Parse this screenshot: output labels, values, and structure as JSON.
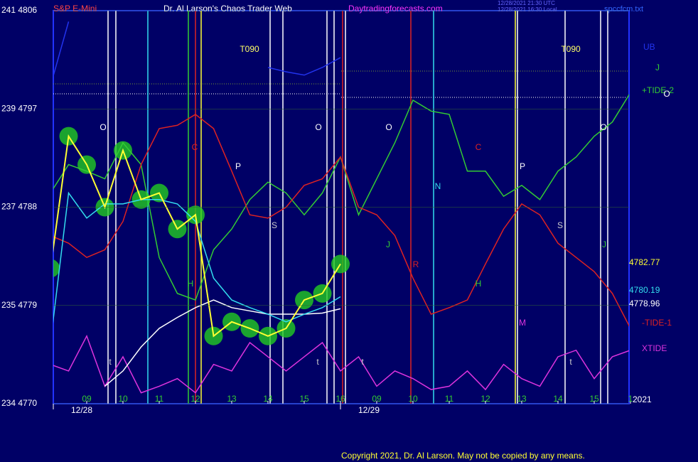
{
  "header": {
    "symbol": "S&P E-Mini",
    "site_title": "Dr. Al Larson's Chaos Trader Web",
    "site_url": "Daytradingforecasts.com",
    "utc_time": "12/28/2021 21:30 UTC",
    "local_time": "12/28/2021 16:30 Local",
    "file": "spccfcm.txt"
  },
  "footer": {
    "copyright": "Copyright 2021, Dr. Al Larson. May not be copied by any means."
  },
  "chart_data": {
    "type": "line",
    "categories": [
      null,
      null,
      "09",
      null,
      "10",
      null,
      "11",
      null,
      "12",
      null,
      "13",
      null,
      "14",
      null,
      "15",
      null,
      "16",
      null,
      "09",
      null,
      "10",
      null,
      "11",
      null,
      "12",
      null,
      "13",
      null,
      "14",
      null,
      "15",
      null,
      "1"
    ],
    "dates": [
      "12/28",
      "12/29"
    ],
    "ylim": [
      4770,
      4806
    ],
    "yticks": [
      {
        "value": 4770,
        "label": "234 4770"
      },
      {
        "value": 4779,
        "label": "235 4779"
      },
      {
        "value": 4788,
        "label": "237 4788"
      },
      {
        "value": 4797,
        "label": "239 4797"
      },
      {
        "value": 4806,
        "label": "241 4806"
      }
    ],
    "year": "2021",
    "series": [
      {
        "name": "UB",
        "color": "#2233ee",
        "values": [
          4799.1,
          4805.0,
          null,
          null,
          null,
          null,
          null,
          null,
          null,
          null,
          null,
          null,
          4800.8,
          4800.4,
          4800.1,
          4800.8,
          4801.7,
          null,
          null,
          null,
          null,
          null,
          null,
          null,
          null,
          null,
          null,
          null,
          null,
          null,
          null,
          null,
          null
        ]
      },
      {
        "name": "+TIDE-2",
        "color": "#33cc33",
        "values": [
          4789.3,
          4791.9,
          4791.3,
          4790.6,
          4793.9,
          4791.9,
          4783.4,
          4780.1,
          4779.5,
          4784.1,
          4786.0,
          4788.7,
          4790.3,
          4789.3,
          4787.3,
          4789.3,
          4792.6,
          4787.3,
          4790.6,
          4793.9,
          4797.8,
          4796.8,
          4796.5,
          4791.3,
          4791.3,
          4789.0,
          4790.0,
          4788.7,
          4791.3,
          4792.6,
          4794.5,
          4795.8,
          4798.5
        ]
      },
      {
        "name": "-TIDE-1",
        "color": "#dd2222",
        "values": [
          4785.4,
          4784.7,
          4783.4,
          4784.1,
          4786.7,
          4791.9,
          4795.2,
          4795.5,
          4796.5,
          4795.2,
          4791.3,
          4787.3,
          4787.0,
          4788.0,
          4790.0,
          4790.6,
          4792.6,
          4788.0,
          4787.3,
          4785.4,
          4781.5,
          4778.2,
          4778.8,
          4779.5,
          4782.8,
          4786.0,
          4788.3,
          4787.3,
          4784.7,
          4783.4,
          4782.1,
          4780.1,
          4776.9
        ]
      },
      {
        "name": "XTIDE",
        "color": "#dd33dd",
        "values": [
          4773.6,
          4773.0,
          4776.2,
          4771.6,
          4774.3,
          4771.0,
          4771.6,
          4772.3,
          4771.0,
          4773.6,
          4773.0,
          4775.6,
          4774.3,
          4773.0,
          4774.3,
          4775.6,
          4773.0,
          4774.3,
          4771.6,
          4773.0,
          4772.3,
          4771.3,
          4771.6,
          4773.0,
          4771.3,
          4773.6,
          4772.3,
          4771.6,
          4774.3,
          4774.9,
          4772.3,
          4774.3,
          4774.9
        ]
      },
      {
        "name": "4778.96",
        "color": "#ffffff",
        "values": [
          null,
          null,
          null,
          4771.6,
          4773.0,
          4775.2,
          4776.9,
          4777.9,
          4778.8,
          4779.5,
          4778.8,
          4778.5,
          4778.2,
          4778.2,
          4778.2,
          4778.3,
          4778.7,
          null,
          null,
          null,
          null,
          null,
          null,
          null,
          null,
          null,
          null,
          null,
          null,
          null,
          null,
          null,
          null
        ]
      },
      {
        "name": "4780.19",
        "color": "#33ddee",
        "values": [
          4775.6,
          4789.3,
          4787.0,
          4788.3,
          4788.3,
          4788.7,
          4788.7,
          4788.3,
          4786.7,
          4781.5,
          4779.5,
          4778.8,
          4778.2,
          4777.5,
          4778.2,
          4778.8,
          4779.8,
          null,
          null,
          null,
          null,
          null,
          null,
          null,
          null,
          null,
          null,
          null,
          null,
          null,
          null,
          null,
          null
        ]
      },
      {
        "name": "4782.77",
        "color": "#ffff33",
        "values": [
          4782.4,
          4794.5,
          4791.9,
          4788.0,
          4793.2,
          4788.7,
          4789.3,
          4786.0,
          4787.3,
          4776.2,
          4777.5,
          4776.9,
          4776.2,
          4776.9,
          4779.5,
          4780.1,
          4782.8,
          null,
          null,
          null,
          null,
          null,
          null,
          null,
          null,
          null,
          null,
          null,
          null,
          null,
          null,
          null,
          null
        ]
      }
    ],
    "annotations": [
      "O",
      "O",
      "O",
      "O",
      "C",
      "C",
      "P",
      "P",
      "N",
      "S",
      "S",
      "J",
      "J",
      "R",
      "H",
      "H",
      "M",
      "T090",
      "T090",
      "t",
      "t",
      "t",
      "t",
      "J",
      "O"
    ]
  }
}
